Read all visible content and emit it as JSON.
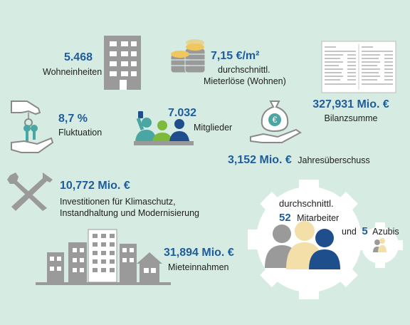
{
  "stats": {
    "units": {
      "value": "5.468",
      "label": "Wohneinheiten"
    },
    "rent": {
      "value": "7,15 €/m²",
      "label_1": "durchschnittl.",
      "label_2": "Mieterlöse (Wohnen)"
    },
    "balance": {
      "value": "327,931 Mio. €",
      "label": "Bilanzsumme"
    },
    "fluctuation": {
      "value": "8,7 %",
      "label": "Fluktuation"
    },
    "members": {
      "value": "7.032",
      "label": "Mitglieder"
    },
    "surplus": {
      "value": "3,152 Mio. €",
      "label": "Jahresüberschuss"
    },
    "investments": {
      "value": "10,772 Mio. €",
      "label_1": "Investitionen für Klimaschutz,",
      "label_2": "Instandhaltung und Modernisierung"
    },
    "rent_income": {
      "value": "31,894 Mio. €",
      "label": "Mieteinnahmen"
    },
    "employees": {
      "prefix": "durchschnittl.",
      "value": "52",
      "label": "Mitarbeiter",
      "and": "und",
      "apprentices_value": "5",
      "apprentices_label": "Azubis"
    }
  },
  "colors": {
    "accent_blue": "#1f5c99",
    "icon_gray": "#9a9a9a",
    "mint": "#d6ebe2",
    "teal": "#4aa6a3",
    "green": "#7dba3c",
    "navy": "#1f4e8c",
    "beige": "#f4dfa8"
  },
  "icons": [
    "building-icon",
    "coins-icon",
    "balance-sheet-icon",
    "hand-keys-icon",
    "people-group-icon",
    "money-bag-hand-icon",
    "tools-icon",
    "city-buildings-icon",
    "gear-team-icon"
  ]
}
